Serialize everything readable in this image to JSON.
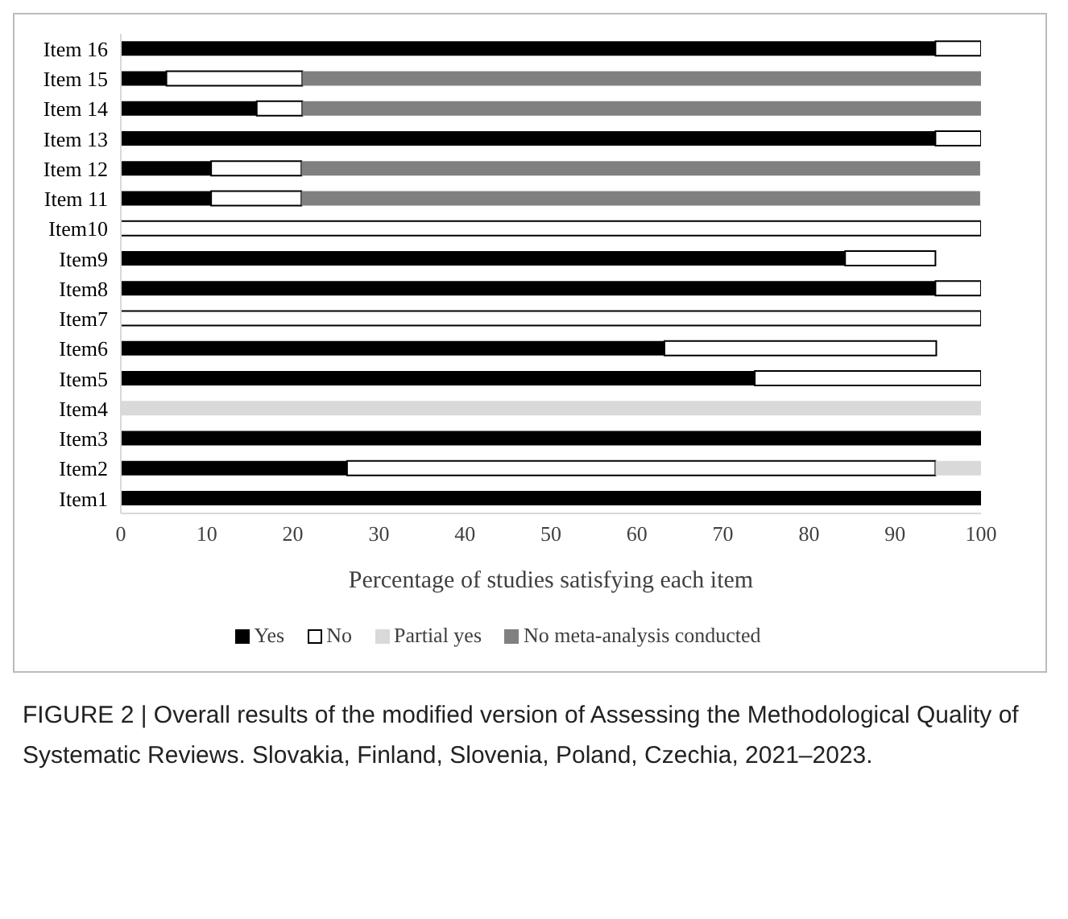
{
  "chart_data": {
    "type": "bar",
    "orientation": "horizontal",
    "stacked": true,
    "xlabel": "Percentage of studies satisfying each item",
    "categories": [
      "Item 16",
      "Item 15",
      "Item 14",
      "Item 13",
      "Item 12",
      "Item 11",
      "Item10",
      "Item9",
      "Item8",
      "Item7",
      "Item6",
      "Item5",
      "Item4",
      "Item3",
      "Item2",
      "Item1"
    ],
    "series": [
      {
        "name": "Yes",
        "color": "#000000",
        "values": [
          94.7,
          5.3,
          15.8,
          94.7,
          10.5,
          10.5,
          0,
          84.2,
          94.7,
          0,
          63.2,
          73.7,
          0,
          100,
          26.3,
          100
        ]
      },
      {
        "name": "No",
        "color": "#ffffff",
        "values": [
          5.3,
          15.8,
          5.3,
          5.3,
          10.5,
          10.5,
          100,
          10.5,
          5.3,
          100,
          31.6,
          26.3,
          0,
          0,
          68.4,
          0
        ]
      },
      {
        "name": "Partial yes",
        "color": "#d9d9d9",
        "values": [
          0,
          0,
          0,
          0,
          0,
          0,
          0,
          0,
          0,
          0,
          0,
          0,
          100,
          0,
          5.3,
          0
        ]
      },
      {
        "name": "No meta-analysis conducted",
        "color": "#808080",
        "values": [
          0,
          78.9,
          78.9,
          0,
          78.9,
          78.9,
          0,
          0,
          0,
          0,
          0,
          0,
          0,
          0,
          0,
          0
        ]
      }
    ],
    "xlim": [
      0,
      100
    ],
    "xticks": [
      0,
      10,
      20,
      30,
      40,
      50,
      60,
      70,
      80,
      90,
      100
    ],
    "legend": "bottom",
    "grid": false,
    "annotations": [
      "FIGURE 2 | Overall results of the modified version of Assessing the Methodological Quality of Systematic Reviews. Slovakia, Finland, Slovenia, Poland, Czechia, 2021–2023."
    ]
  }
}
